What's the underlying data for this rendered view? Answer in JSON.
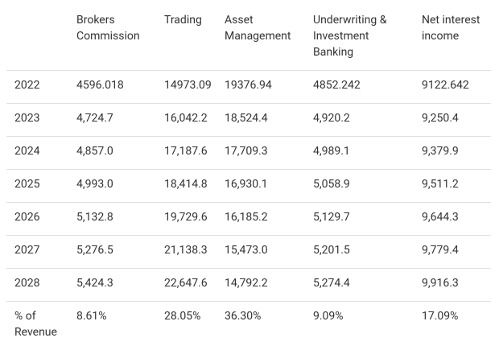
{
  "table": {
    "header": [
      "Brokers Commission",
      "Trading",
      "Asset Management",
      "Underwriting & Investment Banking",
      "Net interest income"
    ],
    "rows": [
      {
        "label": "2022",
        "cells": [
          "4596.018",
          "14973.09",
          "19376.94",
          "4852.242",
          "9122.642"
        ]
      },
      {
        "label": "2023",
        "cells": [
          "4,724.7",
          "16,042.2",
          "18,524.4",
          "4,920.2",
          "9,250.4"
        ]
      },
      {
        "label": "2024",
        "cells": [
          "4,857.0",
          "17,187.6",
          "17,709.3",
          "4,989.1",
          "9,379.9"
        ]
      },
      {
        "label": "2025",
        "cells": [
          "4,993.0",
          "18,414.8",
          "16,930.1",
          "5,058.9",
          "9,511.2"
        ]
      },
      {
        "label": "2026",
        "cells": [
          "5,132.8",
          "19,729.6",
          "16,185.2",
          "5,129.7",
          "9,644.3"
        ]
      },
      {
        "label": "2027",
        "cells": [
          "5,276.5",
          "21,138.3",
          "15,473.0",
          "5,201.5",
          "9,779.4"
        ]
      },
      {
        "label": "2028",
        "cells": [
          "5,424.3",
          "22,647.6",
          "14,792.2",
          "5,274.4",
          "9,916.3"
        ]
      },
      {
        "label": "% of Revenue",
        "cells": [
          "8.61%",
          "28.05%",
          "36.30%",
          "9.09%",
          "17.09%"
        ]
      }
    ]
  }
}
